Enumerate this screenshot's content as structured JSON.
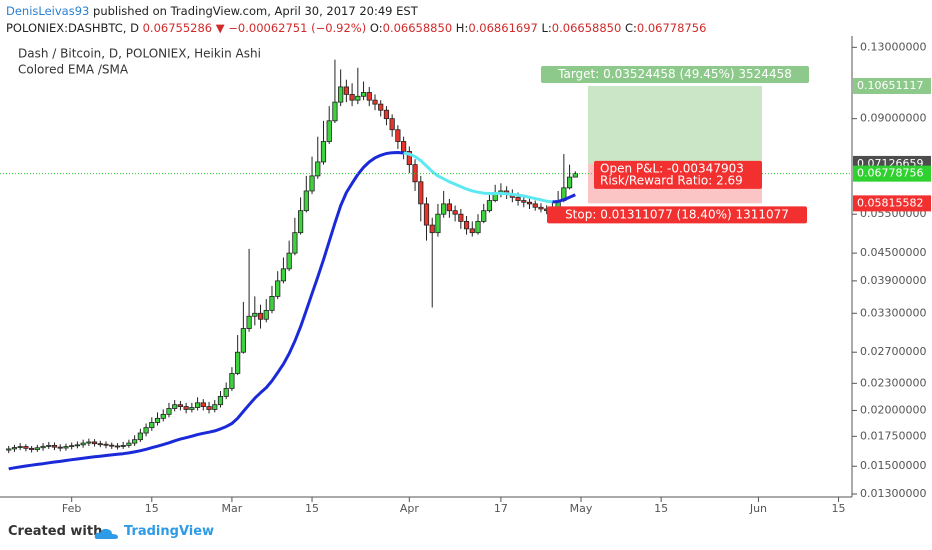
{
  "header": {
    "author": "DenisLeivas93",
    "published": "published on TradingView.com, April 30, 2017 20:49 EST",
    "symbol": "POLONIEX:DASHBTC, D",
    "price": "0.06755286",
    "change": "▼ −0.00062751 (−0.92%)",
    "ohlc": [
      {
        "key": "O:",
        "text": "0.06658850"
      },
      {
        "key": "H:",
        "text": "0.06861697"
      },
      {
        "key": "L:",
        "text": "0.06658850"
      },
      {
        "key": "C:",
        "text": "0.06778756"
      }
    ]
  },
  "footer": {
    "created": "Created with",
    "brand": "TradingView"
  },
  "chart_data": {
    "type": "candlestick",
    "title": "Dash / Bitcoin, D, POLONIEX, Heikin Ashi",
    "subtitle": "Colored EMA /SMA",
    "log": true,
    "grid": false,
    "up_color": "#3fd23f",
    "down_color": "#e8352b",
    "xlim": [
      -1,
      147
    ],
    "xticks": [
      {
        "value": 11,
        "label": "Feb"
      },
      {
        "value": 25,
        "label": "15"
      },
      {
        "value": 39,
        "label": "Mar"
      },
      {
        "value": 53,
        "label": "15"
      },
      {
        "value": 70,
        "label": "Apr"
      },
      {
        "value": 86,
        "label": "17"
      },
      {
        "value": 100,
        "label": "May"
      },
      {
        "value": 114,
        "label": "15"
      },
      {
        "value": 131,
        "label": "Jun"
      },
      {
        "value": 145,
        "label": "15"
      }
    ],
    "ylim": [
      0.0128,
      0.135
    ],
    "yticks": [
      {
        "value": 0.13,
        "label": "0.13000000"
      },
      {
        "value": 0.09,
        "label": "0.09000000"
      },
      {
        "value": 0.055,
        "label": "0.05500000"
      },
      {
        "value": 0.045,
        "label": "0.04500000"
      },
      {
        "value": 0.039,
        "label": "0.03900000"
      },
      {
        "value": 0.033,
        "label": "0.03300000"
      },
      {
        "value": 0.027,
        "label": "0.02700000"
      },
      {
        "value": 0.023,
        "label": "0.02300000"
      },
      {
        "value": 0.02,
        "label": "0.02000000"
      },
      {
        "value": 0.0175,
        "label": "0.01750000"
      },
      {
        "value": 0.015,
        "label": "0.01500000"
      },
      {
        "value": 0.013,
        "label": "0.01300000"
      }
    ],
    "open": [
      0.0163,
      0.0164,
      0.01652,
      0.0166,
      0.01645,
      0.01635,
      0.0165,
      0.01662,
      0.0167,
      0.01655,
      0.01648,
      0.0166,
      0.01668,
      0.01675,
      0.0169,
      0.017,
      0.01685,
      0.0168,
      0.01672,
      0.01665,
      0.0166,
      0.0167,
      0.0169,
      0.0172,
      0.0178,
      0.0183,
      0.0188,
      0.0192,
      0.0196,
      0.0202,
      0.0206,
      0.0204,
      0.0201,
      0.0203,
      0.0208,
      0.0204,
      0.0201,
      0.0206,
      0.0215,
      0.0224,
      0.0242,
      0.027,
      0.0305,
      0.0325,
      0.033,
      0.032,
      0.0335,
      0.036,
      0.039,
      0.0415,
      0.045,
      0.05,
      0.056,
      0.062,
      0.067,
      0.072,
      0.08,
      0.089,
      0.098,
      0.106,
      0.102,
      0.099,
      0.101,
      0.103,
      0.099,
      0.097,
      0.094,
      0.09,
      0.085,
      0.08,
      0.076,
      0.071,
      0.065,
      0.058,
      0.052,
      0.05,
      0.055,
      0.058,
      0.056,
      0.055,
      0.053,
      0.051,
      0.05,
      0.053,
      0.056,
      0.059,
      0.061,
      0.062,
      0.061,
      0.06,
      0.059,
      0.0585,
      0.058,
      0.057,
      0.0565,
      0.056,
      0.057,
      0.059,
      0.063,
      0.0665885
    ],
    "high": [
      0.01665,
      0.01675,
      0.0169,
      0.0168,
      0.01665,
      0.01675,
      0.0169,
      0.017,
      0.01695,
      0.0168,
      0.01685,
      0.01695,
      0.01705,
      0.0172,
      0.0173,
      0.01725,
      0.0171,
      0.01705,
      0.01695,
      0.0169,
      0.017,
      0.0172,
      0.0176,
      0.0182,
      0.0187,
      0.0193,
      0.0198,
      0.0201,
      0.0208,
      0.0211,
      0.021,
      0.0208,
      0.0208,
      0.0214,
      0.0212,
      0.0209,
      0.0211,
      0.0221,
      0.0231,
      0.025,
      0.0295,
      0.035,
      0.046,
      0.036,
      0.0345,
      0.0355,
      0.038,
      0.041,
      0.044,
      0.048,
      0.054,
      0.06,
      0.067,
      0.074,
      0.082,
      0.089,
      0.096,
      0.122,
      0.116,
      0.11,
      0.108,
      0.117,
      0.109,
      0.106,
      0.102,
      0.099,
      0.096,
      0.092,
      0.087,
      0.082,
      0.078,
      0.073,
      0.067,
      0.06,
      0.054,
      0.058,
      0.062,
      0.0595,
      0.0575,
      0.0565,
      0.0545,
      0.053,
      0.055,
      0.058,
      0.0615,
      0.064,
      0.0645,
      0.0635,
      0.0625,
      0.0615,
      0.0605,
      0.06,
      0.059,
      0.0582,
      0.0576,
      0.0585,
      0.062,
      0.075,
      0.071,
      0.06861697
    ],
    "low": [
      0.01605,
      0.01615,
      0.0163,
      0.0162,
      0.0161,
      0.01615,
      0.01625,
      0.0164,
      0.0163,
      0.0162,
      0.01625,
      0.01635,
      0.01645,
      0.0165,
      0.01665,
      0.0166,
      0.01655,
      0.01645,
      0.0164,
      0.01635,
      0.0164,
      0.0165,
      0.01665,
      0.017,
      0.0175,
      0.018,
      0.0185,
      0.0189,
      0.0193,
      0.0199,
      0.02,
      0.0197,
      0.0198,
      0.02,
      0.02,
      0.0197,
      0.0198,
      0.0203,
      0.0212,
      0.0221,
      0.024,
      0.0268,
      0.03,
      0.031,
      0.0305,
      0.0315,
      0.033,
      0.0355,
      0.0385,
      0.041,
      0.0445,
      0.0495,
      0.0555,
      0.061,
      0.066,
      0.071,
      0.079,
      0.088,
      0.096,
      0.098,
      0.096,
      0.097,
      0.099,
      0.096,
      0.094,
      0.091,
      0.087,
      0.082,
      0.077,
      0.073,
      0.068,
      0.062,
      0.053,
      0.048,
      0.034,
      0.049,
      0.054,
      0.054,
      0.053,
      0.051,
      0.0495,
      0.049,
      0.0495,
      0.0525,
      0.0555,
      0.0585,
      0.06,
      0.0595,
      0.0585,
      0.0575,
      0.057,
      0.0565,
      0.056,
      0.0555,
      0.055,
      0.0555,
      0.0565,
      0.0585,
      0.0625,
      0.0665885
    ],
    "close": [
      0.0164,
      0.01652,
      0.0166,
      0.01645,
      0.01635,
      0.0165,
      0.01662,
      0.0167,
      0.01655,
      0.01648,
      0.0166,
      0.01668,
      0.01675,
      0.0169,
      0.017,
      0.01685,
      0.0168,
      0.01672,
      0.01665,
      0.0166,
      0.0167,
      0.0169,
      0.0172,
      0.0178,
      0.0183,
      0.0188,
      0.0192,
      0.0196,
      0.0202,
      0.0206,
      0.0204,
      0.0201,
      0.0203,
      0.0208,
      0.0204,
      0.0201,
      0.0206,
      0.0215,
      0.0224,
      0.0242,
      0.027,
      0.0305,
      0.0325,
      0.033,
      0.032,
      0.0335,
      0.036,
      0.039,
      0.0415,
      0.045,
      0.05,
      0.056,
      0.062,
      0.067,
      0.072,
      0.08,
      0.089,
      0.098,
      0.106,
      0.102,
      0.099,
      0.101,
      0.103,
      0.099,
      0.097,
      0.094,
      0.09,
      0.085,
      0.08,
      0.076,
      0.071,
      0.065,
      0.058,
      0.052,
      0.05,
      0.055,
      0.058,
      0.056,
      0.055,
      0.053,
      0.051,
      0.05,
      0.053,
      0.056,
      0.059,
      0.061,
      0.062,
      0.061,
      0.06,
      0.059,
      0.0585,
      0.058,
      0.057,
      0.0565,
      0.056,
      0.057,
      0.059,
      0.063,
      0.0665885,
      0.06778756
    ],
    "series": [
      {
        "color": "#1b2ad8",
        "values": [
          0.0148,
          0.01488,
          0.01495,
          0.01502,
          0.01508,
          0.01514,
          0.0152,
          0.01527,
          0.01533,
          0.01538,
          0.01545,
          0.01551,
          0.01557,
          0.01563,
          0.01569,
          0.01575,
          0.0158,
          0.01585,
          0.0159,
          0.01595,
          0.016,
          0.01607,
          0.01615,
          0.01625,
          0.01637,
          0.0165,
          0.01663,
          0.01677,
          0.01693,
          0.0171,
          0.01725,
          0.01738,
          0.01751,
          0.01766,
          0.01778,
          0.01788,
          0.018,
          0.01818,
          0.0184,
          0.0187,
          0.0192,
          0.0199,
          0.0206,
          0.0213,
          0.0219,
          0.0225,
          0.0233,
          0.0243,
          0.0254,
          0.0268,
          0.0286,
          0.0308,
          0.0335,
          0.0365,
          0.0398,
          0.0435,
          0.0478,
          0.0525,
          0.0575,
          0.0615,
          0.0645,
          0.0675,
          0.07,
          0.072,
          0.0735,
          0.0745,
          0.0752,
          0.0755,
          0.0756,
          0.0754,
          null,
          null,
          null,
          null,
          null,
          null,
          null,
          null,
          null,
          null,
          null,
          null,
          null,
          null,
          null,
          null,
          null,
          null,
          null,
          null,
          null,
          null,
          null,
          null,
          null,
          0.0586,
          0.0587,
          0.0593,
          0.06,
          0.0608
        ]
      },
      {
        "color": "#5ee9f2",
        "values": [
          null,
          null,
          null,
          null,
          null,
          null,
          null,
          null,
          null,
          null,
          null,
          null,
          null,
          null,
          null,
          null,
          null,
          null,
          null,
          null,
          null,
          null,
          null,
          null,
          null,
          null,
          null,
          null,
          null,
          null,
          null,
          null,
          null,
          null,
          null,
          null,
          null,
          null,
          null,
          null,
          null,
          null,
          null,
          null,
          null,
          null,
          null,
          null,
          null,
          null,
          null,
          null,
          null,
          null,
          null,
          null,
          null,
          null,
          null,
          null,
          null,
          null,
          null,
          null,
          null,
          null,
          null,
          null,
          null,
          0.0754,
          0.075,
          0.074,
          0.0725,
          0.0705,
          0.0685,
          0.067,
          0.066,
          0.065,
          0.0642,
          0.0634,
          0.0626,
          0.062,
          0.0616,
          0.0613,
          0.0612,
          0.0612,
          0.0612,
          0.0611,
          0.0609,
          0.0607,
          0.0604,
          0.06,
          0.0596,
          0.0592,
          0.0588,
          0.0586,
          null,
          null,
          null,
          null
        ]
      }
    ],
    "position": {
      "entry": 0.07126659,
      "target": 0.10651117,
      "stop": 0.05815582,
      "target_label": "Target: 0.03524458 (49.45%) 3524458",
      "pnl_label": "Open P&L: -0.00347903",
      "rr_label": "Risk/Reward Ratio: 2.69",
      "stop_label": "Stop: 0.01311077 (18.40%) 1311077"
    }
  }
}
